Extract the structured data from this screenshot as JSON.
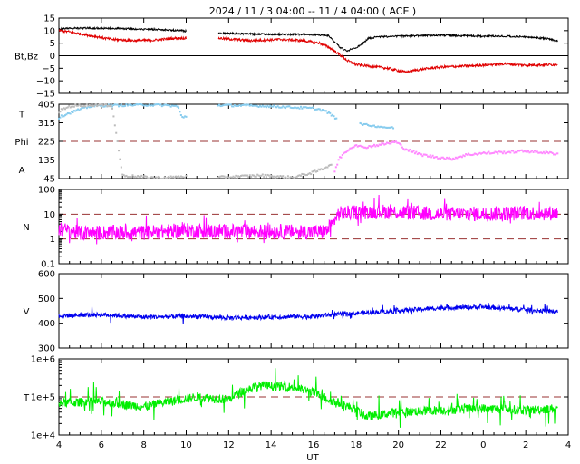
{
  "title": "2024 / 11 / 3   04:00 -- 11 / 4   04:00 ( ACE )",
  "xlabel": "UT",
  "colors": {
    "bt": "#000000",
    "bz": "#e00000",
    "theta": "#88ccee",
    "phi": "#bbbbbb",
    "phi_alt": "#ff88ff",
    "density": "#ff00ff",
    "speed": "#0000ee",
    "temp": "#00ee00",
    "ref": "#993333"
  },
  "chart_data": {
    "type": "line",
    "x_range_hours": [
      4,
      27.5
    ],
    "x_tick_positions_hours": [
      4,
      6,
      8,
      10,
      12,
      14,
      16,
      18,
      20,
      22,
      24,
      26,
      28
    ],
    "x_tick_labels": [
      "4",
      "6",
      "8",
      "10",
      "12",
      "14",
      "16",
      "18",
      "20",
      "22",
      "0",
      "2",
      "4"
    ],
    "panels": [
      {
        "id": "mag",
        "ylabel": "Bt,Bz",
        "scale": "linear",
        "ylim": [
          -15,
          15
        ],
        "ticks": [
          {
            "v": 15,
            "l": "15"
          },
          {
            "v": 10,
            "l": "10"
          },
          {
            "v": 5,
            "l": "5"
          },
          {
            "v": 0,
            "l": "0"
          },
          {
            "v": -5,
            "l": "−5"
          },
          {
            "v": -10,
            "l": "−10"
          },
          {
            "v": -15,
            "l": "−15"
          }
        ],
        "ref_lines": [
          {
            "v": 0,
            "style": "solid"
          }
        ],
        "series": [
          {
            "name": "Bt",
            "color_key": "bt",
            "noise": 0.35,
            "gap": [
              10,
              11.5
            ],
            "points": [
              [
                4,
                10.5
              ],
              [
                4.5,
                11
              ],
              [
                5.5,
                11
              ],
              [
                7,
                10.8
              ],
              [
                8.5,
                10.5
              ],
              [
                9.8,
                10
              ],
              [
                10,
                9.8
              ],
              [
                11.5,
                9
              ],
              [
                12.5,
                8.8
              ],
              [
                14,
                8.5
              ],
              [
                15.5,
                8.5
              ],
              [
                16.3,
                8.3
              ],
              [
                16.7,
                8
              ],
              [
                17,
                5.5
              ],
              [
                17.3,
                3
              ],
              [
                17.6,
                2
              ],
              [
                17.9,
                3
              ],
              [
                18.2,
                4
              ],
              [
                18.6,
                7
              ],
              [
                19,
                7.5
              ],
              [
                20,
                7.8
              ],
              [
                21,
                8
              ],
              [
                22,
                8.2
              ],
              [
                23,
                8
              ],
              [
                24,
                7.8
              ],
              [
                25,
                7.8
              ],
              [
                26,
                7.5
              ],
              [
                27,
                6.8
              ],
              [
                27.5,
                5.8
              ]
            ]
          },
          {
            "name": "Bz",
            "color_key": "bz",
            "noise": 0.5,
            "gap": [
              10,
              11.5
            ],
            "points": [
              [
                4,
                10
              ],
              [
                4.5,
                9.5
              ],
              [
                5.5,
                8
              ],
              [
                6.5,
                6.5
              ],
              [
                7.5,
                6
              ],
              [
                8.5,
                6.2
              ],
              [
                9.5,
                7
              ],
              [
                10,
                7
              ],
              [
                11.5,
                7
              ],
              [
                13,
                6
              ],
              [
                14.5,
                6.5
              ],
              [
                15.5,
                6
              ],
              [
                16.3,
                5
              ],
              [
                16.8,
                3
              ],
              [
                17.3,
                0
              ],
              [
                17.6,
                -2
              ],
              [
                18,
                -3.5
              ],
              [
                18.5,
                -4
              ],
              [
                19.5,
                -5
              ],
              [
                20.3,
                -6.5
              ],
              [
                21,
                -5.5
              ],
              [
                22,
                -4.5
              ],
              [
                23.5,
                -4
              ],
              [
                25,
                -3.2
              ],
              [
                26,
                -3.8
              ],
              [
                27.5,
                -3.5
              ]
            ]
          }
        ]
      },
      {
        "id": "angles",
        "ylabel_parts": [
          "T",
          "Phi",
          "A"
        ],
        "scale": "linear",
        "ylim": [
          45,
          405
        ],
        "ticks": [
          {
            "v": 405,
            "l": "405"
          },
          {
            "v": 315,
            "l": "315"
          },
          {
            "v": 225,
            "l": "225"
          },
          {
            "v": 135,
            "l": "135"
          },
          {
            "v": 45,
            "l": "45"
          }
        ],
        "ref_lines": [
          {
            "v": 225,
            "style": "dashed"
          }
        ],
        "series": [
          {
            "name": "theta",
            "color_key": "theta",
            "style": "dots",
            "noise": 5,
            "gap": [
              10,
              11.5
            ],
            "points": [
              [
                4,
                340
              ],
              [
                4.3,
                355
              ],
              [
                4.7,
                370
              ],
              [
                5,
                380
              ],
              [
                5.5,
                395
              ],
              [
                6,
                398
              ],
              [
                7,
                400
              ],
              [
                8,
                402
              ],
              [
                9,
                400
              ],
              [
                9.6,
                395
              ],
              [
                9.8,
                340
              ],
              [
                11.5,
                400
              ],
              [
                13,
                398
              ],
              [
                14,
                395
              ],
              [
                15,
                390
              ],
              [
                16,
                385
              ],
              [
                16.5,
                375
              ],
              [
                16.9,
                350
              ],
              [
                17.1,
                330
              ]
            ]
          },
          {
            "name": "phi",
            "color_key": "phi",
            "style": "dots",
            "noise": 6,
            "gap": [
              10,
              11.5
            ],
            "points": [
              [
                4,
                370
              ],
              [
                4.5,
                395
              ],
              [
                5.5,
                402
              ],
              [
                6.5,
                400
              ],
              [
                7,
                60
              ],
              [
                8,
                52
              ],
              [
                9,
                48
              ],
              [
                9.8,
                55
              ],
              [
                11.5,
                50
              ],
              [
                12.5,
                55
              ],
              [
                13.5,
                60
              ],
              [
                15,
                50
              ],
              [
                16,
                75
              ],
              [
                16.5,
                95
              ],
              [
                16.9,
                120
              ]
            ]
          },
          {
            "name": "phi_after",
            "color_key": "theta",
            "style": "dots",
            "noise": 4,
            "points": [
              [
                18.2,
                310
              ],
              [
                18.8,
                300
              ],
              [
                19.5,
                292
              ],
              [
                19.8,
                290
              ]
            ]
          },
          {
            "name": "phi_late",
            "color_key": "phi_alt",
            "style": "dots",
            "noise": 6,
            "points": [
              [
                17,
                80
              ],
              [
                17.2,
                140
              ],
              [
                17.5,
                175
              ],
              [
                18,
                210
              ],
              [
                18.3,
                195
              ],
              [
                19.9,
                222
              ],
              [
                20.3,
                190
              ],
              [
                21,
                162
              ],
              [
                21.7,
                150
              ],
              [
                22.5,
                140
              ],
              [
                23.2,
                160
              ],
              [
                24,
                168
              ],
              [
                25,
                172
              ],
              [
                26,
                178
              ],
              [
                27,
                170
              ],
              [
                27.5,
                165
              ]
            ]
          }
        ]
      },
      {
        "id": "density",
        "ylabel": "N",
        "scale": "log",
        "ylim": [
          0.1,
          100
        ],
        "ticks": [
          {
            "v": 100,
            "l": "100"
          },
          {
            "v": 10,
            "l": "10"
          },
          {
            "v": 1,
            "l": "1"
          },
          {
            "v": 0.1,
            "l": "0.1"
          }
        ],
        "ref_lines": [
          {
            "v": 10,
            "style": "dashed"
          },
          {
            "v": 1,
            "style": "dashed"
          }
        ],
        "series": [
          {
            "name": "N",
            "color_key": "density",
            "noise": 0.3,
            "spike_rate": 0.05,
            "points": [
              [
                4,
                2.5
              ],
              [
                5,
                1.7
              ],
              [
                6,
                1.8
              ],
              [
                8,
                1.8
              ],
              [
                10,
                2.2
              ],
              [
                12,
                2
              ],
              [
                14,
                2
              ],
              [
                16,
                1.9
              ],
              [
                16.6,
                2
              ],
              [
                16.9,
                4
              ],
              [
                17.2,
                10.5
              ],
              [
                18,
                12
              ],
              [
                19,
                13
              ],
              [
                20,
                12
              ],
              [
                21,
                11
              ],
              [
                22,
                10
              ],
              [
                24,
                10.5
              ],
              [
                26,
                11
              ],
              [
                27.5,
                11
              ]
            ]
          }
        ]
      },
      {
        "id": "speed",
        "ylabel": "V",
        "scale": "linear",
        "ylim": [
          300,
          600
        ],
        "ticks": [
          {
            "v": 600,
            "l": "600"
          },
          {
            "v": 500,
            "l": "500"
          },
          {
            "v": 400,
            "l": "400"
          },
          {
            "v": 300,
            "l": "300"
          }
        ],
        "ref_lines": [],
        "series": [
          {
            "name": "V",
            "color_key": "speed",
            "noise": 9,
            "spike_rate": 0.03,
            "points": [
              [
                4,
                430
              ],
              [
                6,
                435
              ],
              [
                8,
                425
              ],
              [
                10,
                428
              ],
              [
                12,
                422
              ],
              [
                14,
                425
              ],
              [
                16,
                428
              ],
              [
                17,
                435
              ],
              [
                18,
                440
              ],
              [
                19,
                445
              ],
              [
                20,
                450
              ],
              [
                22,
                462
              ],
              [
                24,
                466
              ],
              [
                26,
                455
              ],
              [
                27.5,
                445
              ]
            ]
          }
        ]
      },
      {
        "id": "temp",
        "ylabel": "T",
        "scale": "log",
        "ylim": [
          10000,
          1000000
        ],
        "ticks": [
          {
            "v": 1000000,
            "l": "1e+6"
          },
          {
            "v": 100000,
            "l": "1e+5"
          },
          {
            "v": 10000,
            "l": "1e+4"
          }
        ],
        "ref_lines": [
          {
            "v": 100000,
            "style": "dashed"
          }
        ],
        "series": [
          {
            "name": "Tp",
            "color_key": "temp",
            "noise": 0.12,
            "spike_rate": 0.08,
            "points": [
              [
                4,
                70000
              ],
              [
                6,
                75000
              ],
              [
                8,
                55000
              ],
              [
                9.5,
                80000
              ],
              [
                10.5,
                100000
              ],
              [
                12,
                85000
              ],
              [
                12.8,
                150000
              ],
              [
                13.5,
                200000
              ],
              [
                15,
                180000
              ],
              [
                16,
                130000
              ],
              [
                16.8,
                80000
              ],
              [
                17.5,
                60000
              ],
              [
                18.5,
                30000
              ],
              [
                20,
                40000
              ],
              [
                22,
                45000
              ],
              [
                24,
                50000
              ],
              [
                26,
                45000
              ],
              [
                27.5,
                50000
              ]
            ]
          }
        ]
      }
    ]
  }
}
